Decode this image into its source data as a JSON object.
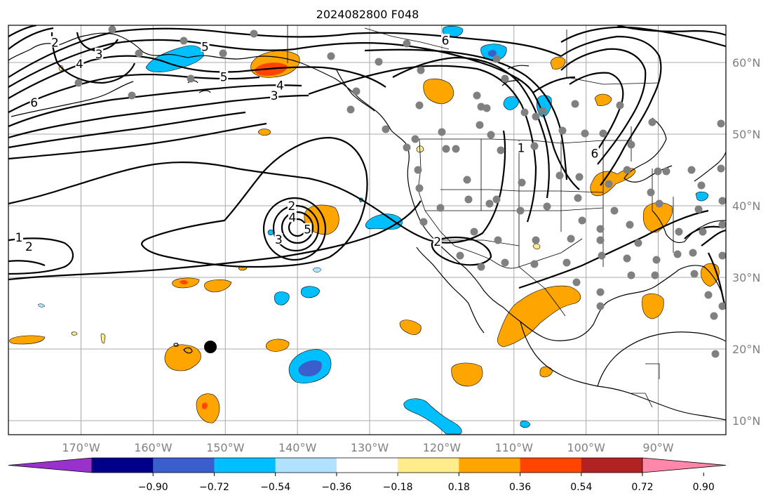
{
  "title": "2024082800 F048",
  "lon_labels": [
    {
      "text": "170°W",
      "lon": -170
    },
    {
      "text": "160°W",
      "lon": -160
    },
    {
      "text": "150°W",
      "lon": -150
    },
    {
      "text": "140°W",
      "lon": -140
    },
    {
      "text": "130°W",
      "lon": -130
    },
    {
      "text": "120°W",
      "lon": -120
    },
    {
      "text": "110°W",
      "lon": -110
    },
    {
      "text": "100°W",
      "lon": -100
    },
    {
      "text": "90°W",
      "lon": -90
    }
  ],
  "lat_labels": [
    {
      "text": "60°N",
      "lat": 60
    },
    {
      "text": "50°N",
      "lat": 50
    },
    {
      "text": "40°N",
      "lat": 40
    },
    {
      "text": "30°N",
      "lat": 30
    },
    {
      "text": "20°N",
      "lat": 20
    },
    {
      "text": "10°N",
      "lat": 10
    }
  ],
  "colorbar": {
    "colors": [
      "#9932cc",
      "#00008b",
      "#3a5fcd",
      "#00bfff",
      "#b0e2ff",
      "#ffffff",
      "#ffec8b",
      "#ffa500",
      "#ff4500",
      "#b22222",
      "#ff88aa"
    ],
    "labels": [
      "−0.90",
      "−0.72",
      "−0.54",
      "−0.36",
      "−0.18",
      "0.18",
      "0.36",
      "0.54",
      "0.72",
      "0.90"
    ]
  },
  "contour_labels": [
    {
      "text": "2",
      "lon": -173.6,
      "lat": 62.8
    },
    {
      "text": "3",
      "lon": -167.5,
      "lat": 61.2
    },
    {
      "text": "4",
      "lon": -170.2,
      "lat": 59.8
    },
    {
      "text": "5",
      "lon": -152.8,
      "lat": 62.2
    },
    {
      "text": "5",
      "lon": -150.2,
      "lat": 58.0
    },
    {
      "text": "4",
      "lon": -142.4,
      "lat": 56.8
    },
    {
      "text": "3",
      "lon": -143.2,
      "lat": 55.4
    },
    {
      "text": "6",
      "lon": -119.5,
      "lat": 63.1
    },
    {
      "text": "6",
      "lon": -98.8,
      "lat": 47.3
    },
    {
      "text": "1",
      "lon": -109.0,
      "lat": 48.1
    },
    {
      "text": "1",
      "lon": -178.6,
      "lat": 35.6
    },
    {
      "text": "2",
      "lon": -177.2,
      "lat": 34.3
    },
    {
      "text": "2",
      "lon": -140.8,
      "lat": 40.0
    },
    {
      "text": "4",
      "lon": -140.7,
      "lat": 38.4
    },
    {
      "text": "3",
      "lon": -142.6,
      "lat": 35.3
    },
    {
      "text": "5",
      "lon": -138.6,
      "lat": 36.7
    },
    {
      "text": "2",
      "lon": -120.6,
      "lat": 35.0
    },
    {
      "text": "6",
      "lon": -176.5,
      "lat": 54.4
    }
  ],
  "legend": {
    "marker_colors": {
      "stations": "#808080",
      "point": "#000000"
    }
  }
}
